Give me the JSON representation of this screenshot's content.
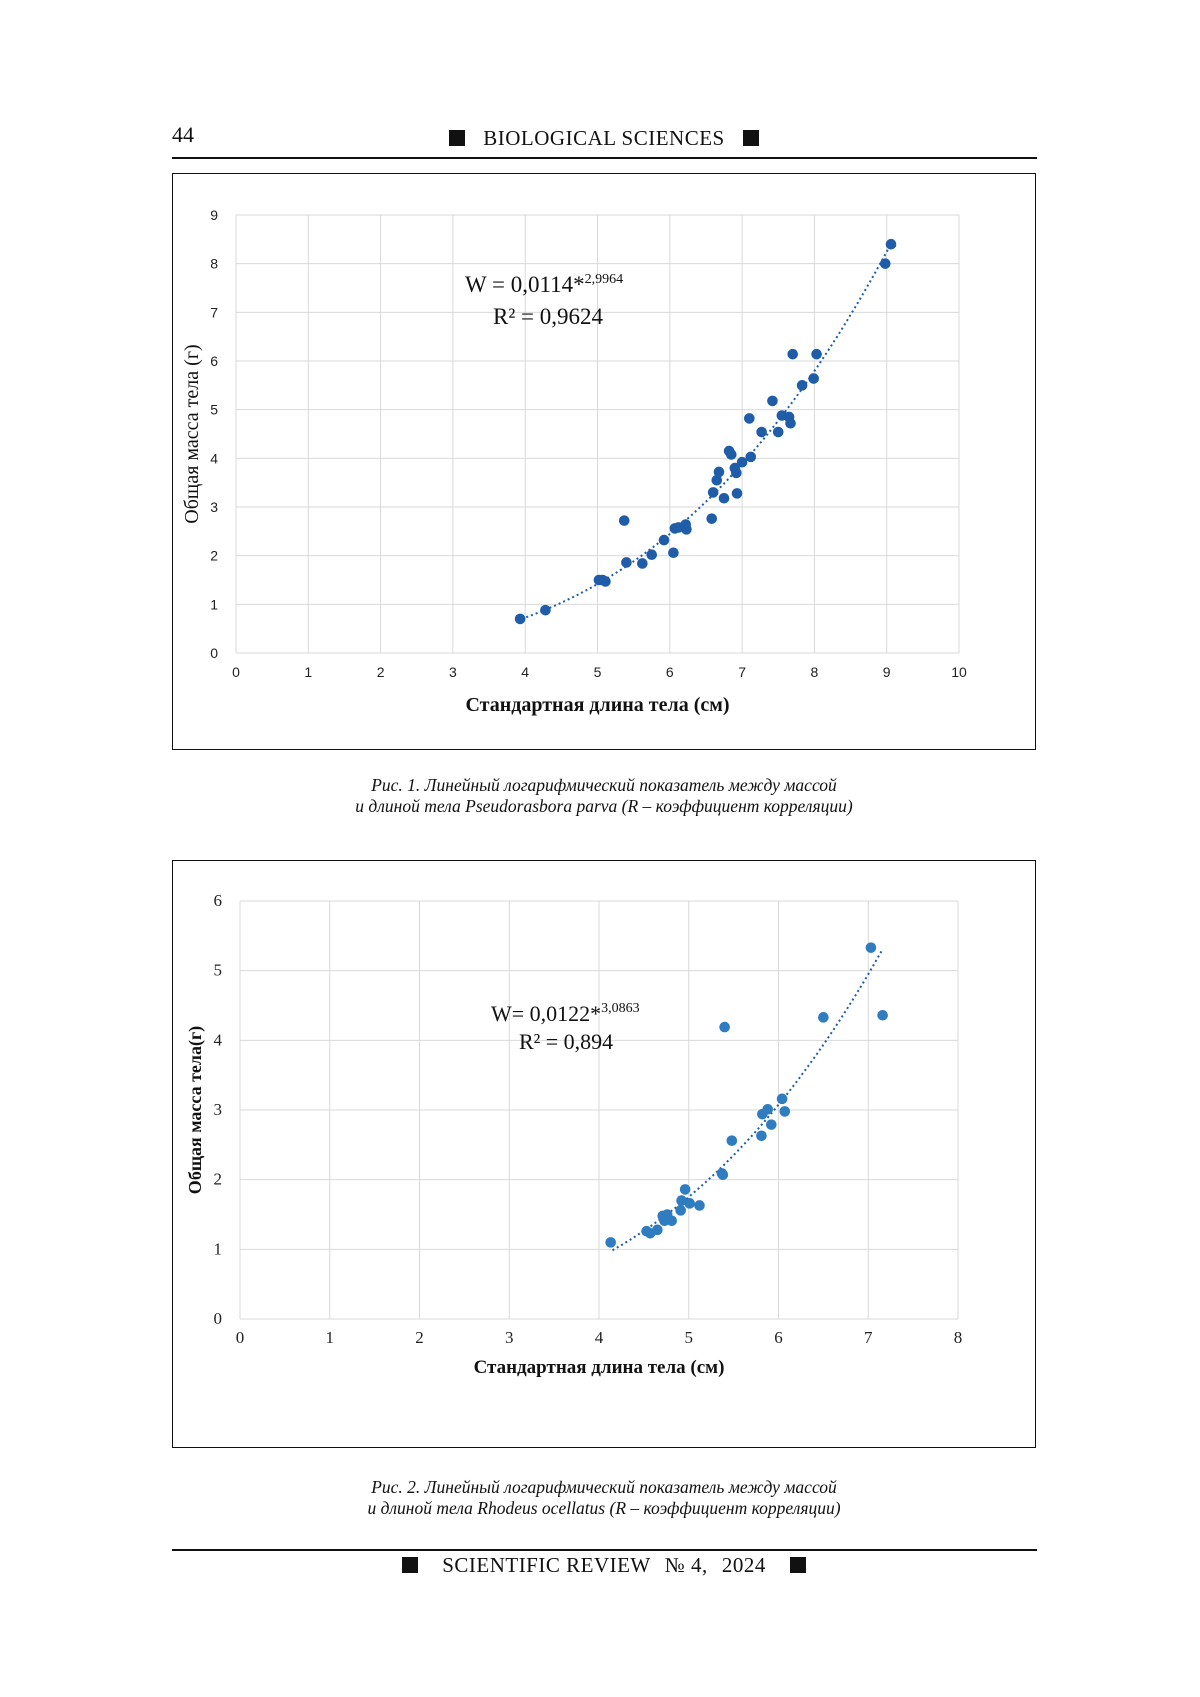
{
  "header": {
    "page_number": "44",
    "journal_section": "BIOLOGICAL  SCIENCES"
  },
  "footer": {
    "journal": "SCIENTIFIC REVIEW",
    "issue": "№ 4,",
    "year": "2024"
  },
  "colors": {
    "points_fig1": "#1f5da8",
    "points_fig2": "#2f7cc0",
    "trendline": "#1f5da8",
    "grid": "#d9d9d9"
  },
  "figures": [
    {
      "caption_line1": "Рис. 1. Линейный логарифмический показатель между массой",
      "caption_line2": "и длиной тела Pseudorasbora parva (R – коэффициент корреляции)",
      "equation_main": "W = 0,0114*",
      "equation_exp": "2,9964",
      "r2": "R² = 0,9624",
      "tick_font": "sans",
      "chart_data": {
        "type": "scatter",
        "title": "",
        "xlabel": "Стандартная  длина тела (см)",
        "ylabel": "Общая масса тела (г)",
        "xlim": [
          0,
          10
        ],
        "ylim": [
          0,
          9
        ],
        "xticks": [
          "0",
          "1",
          "2",
          "3",
          "4",
          "5",
          "6",
          "7",
          "8",
          "9",
          "10"
        ],
        "yticks": [
          "0",
          "1",
          "2",
          "3",
          "4",
          "5",
          "6",
          "7",
          "8",
          "9"
        ],
        "grid": true,
        "trendline": {
          "type": "power",
          "a": 0.0114,
          "b": 2.9964,
          "x_range": [
            3.95,
            9.05
          ]
        },
        "points": [
          [
            3.93,
            0.7
          ],
          [
            4.28,
            0.88
          ],
          [
            5.02,
            1.5
          ],
          [
            5.07,
            1.5
          ],
          [
            5.11,
            1.47
          ],
          [
            5.37,
            2.72
          ],
          [
            5.4,
            1.86
          ],
          [
            5.62,
            1.84
          ],
          [
            5.75,
            2.02
          ],
          [
            5.92,
            2.32
          ],
          [
            6.05,
            2.06
          ],
          [
            6.07,
            2.56
          ],
          [
            6.12,
            2.58
          ],
          [
            6.22,
            2.64
          ],
          [
            6.23,
            2.54
          ],
          [
            6.58,
            2.76
          ],
          [
            6.6,
            3.3
          ],
          [
            6.65,
            3.55
          ],
          [
            6.68,
            3.72
          ],
          [
            6.75,
            3.18
          ],
          [
            6.82,
            4.15
          ],
          [
            6.85,
            4.08
          ],
          [
            6.9,
            3.8
          ],
          [
            6.92,
            3.7
          ],
          [
            6.93,
            3.28
          ],
          [
            7.0,
            3.92
          ],
          [
            7.1,
            4.82
          ],
          [
            7.12,
            4.03
          ],
          [
            7.27,
            4.54
          ],
          [
            7.42,
            5.18
          ],
          [
            7.5,
            4.54
          ],
          [
            7.55,
            4.88
          ],
          [
            7.65,
            4.85
          ],
          [
            7.67,
            4.72
          ],
          [
            7.7,
            6.14
          ],
          [
            7.83,
            5.5
          ],
          [
            7.99,
            5.64
          ],
          [
            8.03,
            6.14
          ],
          [
            8.98,
            8.0
          ],
          [
            9.06,
            8.4
          ]
        ]
      }
    },
    {
      "caption_line1": "Рис. 2. Линейный логарифмический показатель между массой",
      "caption_line2": "и длиной тела Rhodeus ocellatus (R – коэффициент корреляции)",
      "equation_main": "W= 0,0122*",
      "equation_exp": "3,0863",
      "r2": "R² = 0,894",
      "tick_font": "serif",
      "chart_data": {
        "type": "scatter",
        "title": "",
        "xlabel": "Стандартная длина тела (см)",
        "ylabel": "Общая масса тела(г)",
        "xlim": [
          0,
          8
        ],
        "ylim": [
          0,
          6
        ],
        "xticks": [
          "0",
          "1",
          "2",
          "3",
          "4",
          "5",
          "6",
          "7",
          "8"
        ],
        "yticks": [
          "0",
          "1",
          "2",
          "3",
          "4",
          "5",
          "6"
        ],
        "grid": true,
        "trendline": {
          "type": "power",
          "a": 0.0122,
          "b": 3.0863,
          "x_range": [
            4.15,
            7.15
          ]
        },
        "points": [
          [
            4.13,
            1.1
          ],
          [
            4.53,
            1.26
          ],
          [
            4.57,
            1.23
          ],
          [
            4.65,
            1.28
          ],
          [
            4.71,
            1.48
          ],
          [
            4.73,
            1.41
          ],
          [
            4.76,
            1.5
          ],
          [
            4.81,
            1.41
          ],
          [
            4.91,
            1.56
          ],
          [
            4.92,
            1.7
          ],
          [
            4.96,
            1.86
          ],
          [
            5.01,
            1.66
          ],
          [
            5.12,
            1.63
          ],
          [
            5.37,
            2.09
          ],
          [
            5.38,
            2.07
          ],
          [
            5.4,
            4.19
          ],
          [
            5.48,
            2.56
          ],
          [
            5.81,
            2.63
          ],
          [
            5.82,
            2.94
          ],
          [
            5.88,
            3.01
          ],
          [
            5.92,
            2.79
          ],
          [
            6.04,
            3.16
          ],
          [
            6.07,
            2.98
          ],
          [
            6.5,
            4.33
          ],
          [
            7.03,
            5.33
          ],
          [
            7.16,
            4.36
          ]
        ]
      }
    }
  ]
}
